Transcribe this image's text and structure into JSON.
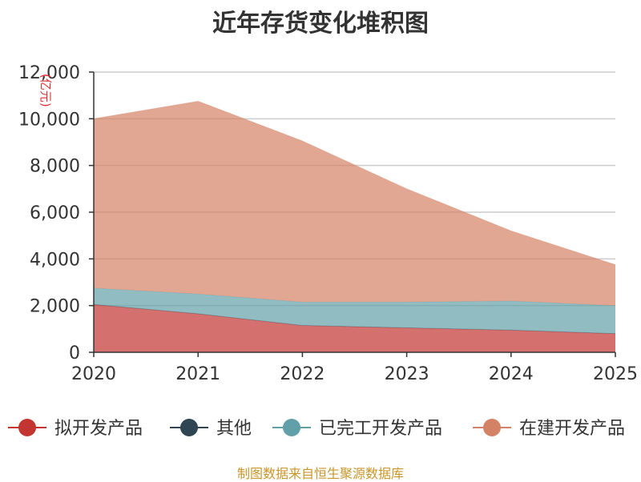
{
  "title": "近年存货变化堆积图",
  "source": "制图数据来自恒生聚源数据库",
  "chart_data": {
    "type": "area",
    "stacked": true,
    "title": "近年存货变化堆积图",
    "unit_label": "(亿元)",
    "categories": [
      "2020",
      "2021",
      "2022",
      "2023",
      "2024",
      "2025"
    ],
    "y_ticks": [
      "0",
      "2,000",
      "4,000",
      "6,000",
      "8,000",
      "10,000",
      "12,000"
    ],
    "ylim": [
      0,
      12000
    ],
    "grid": true,
    "legend_position": "bottom",
    "series": [
      {
        "name": "拟开发产品",
        "color": "#c23531",
        "values": [
          2050,
          1650,
          1150,
          1050,
          950,
          800
        ]
      },
      {
        "name": "其他",
        "color": "#2f4554",
        "values": [
          0,
          0,
          0,
          0,
          0,
          0
        ]
      },
      {
        "name": "已完工开发产品",
        "color": "#61a0a8",
        "values": [
          700,
          850,
          1000,
          1100,
          1250,
          1200
        ]
      },
      {
        "name": "在建开发产品",
        "color": "#d48265",
        "values": [
          7250,
          8250,
          6900,
          4850,
          3000,
          1750
        ]
      }
    ]
  }
}
